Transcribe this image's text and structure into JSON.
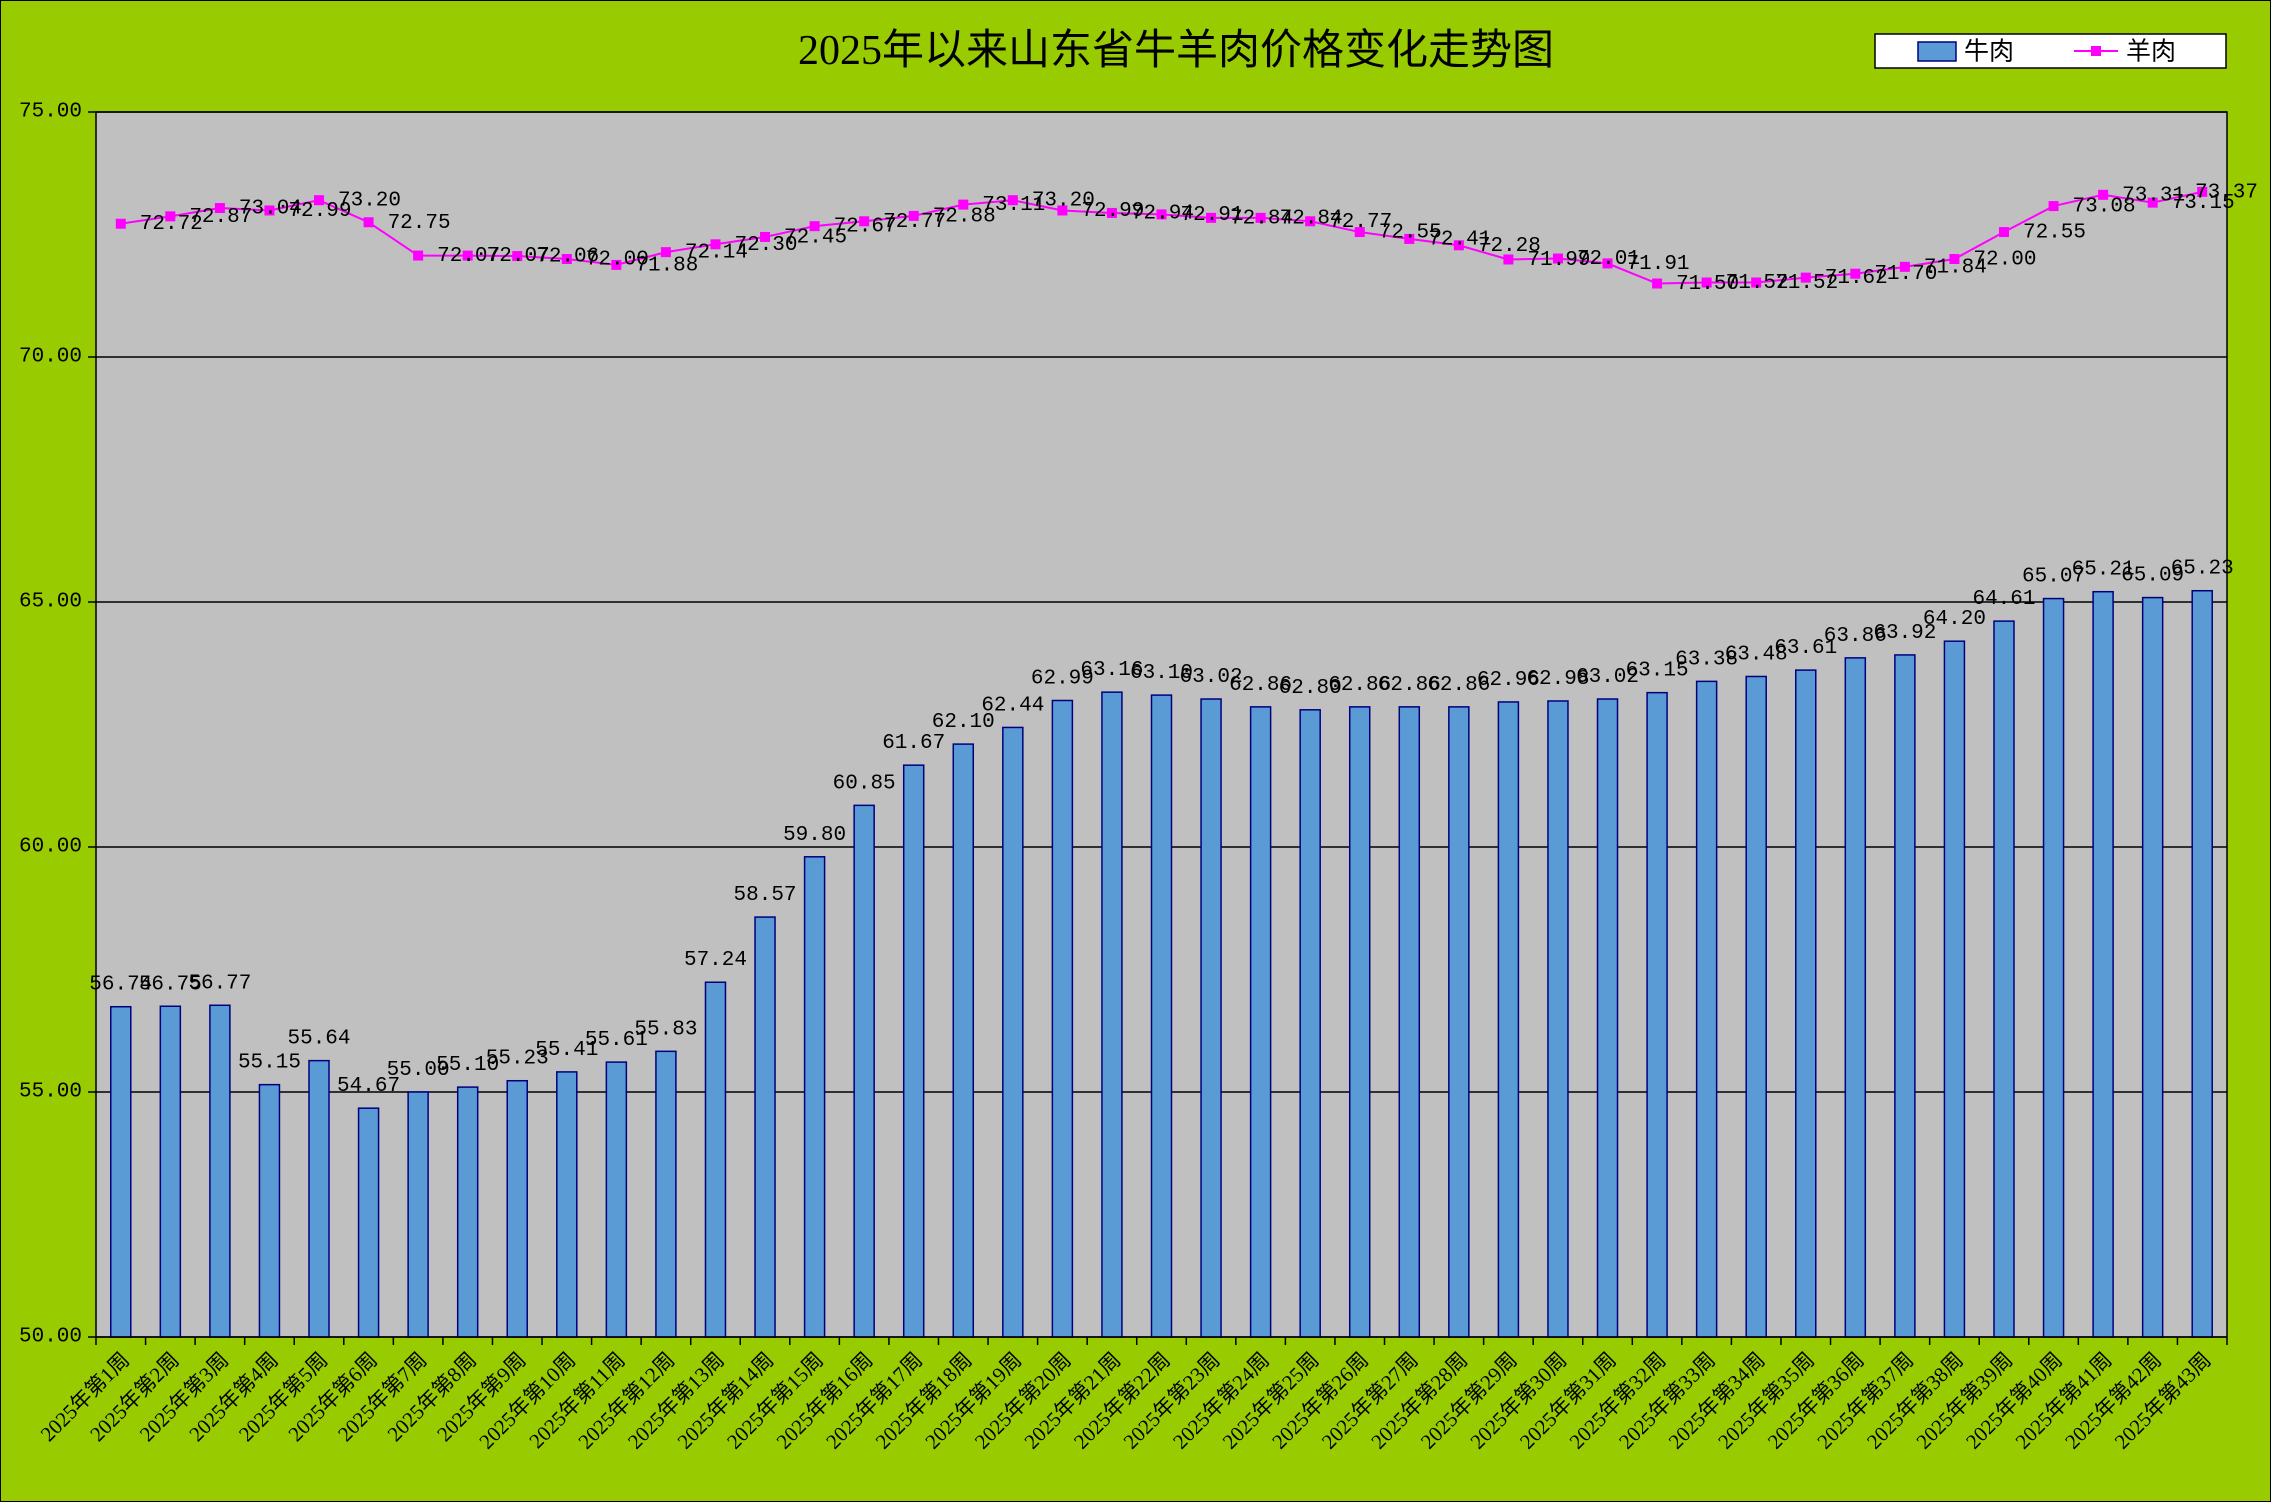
{
  "chart_data": {
    "type": "bar",
    "title": "2025年以来山东省牛羊肉价格变化走势图",
    "categories": [
      "2025年第1周",
      "2025年第2周",
      "2025年第3周",
      "2025年第4周",
      "2025年第5周",
      "2025年第6周",
      "2025年第7周",
      "2025年第8周",
      "2025年第9周",
      "2025年第10周",
      "2025年第11周",
      "2025年第12周",
      "2025年第13周",
      "2025年第14周",
      "2025年第15周",
      "2025年第16周",
      "2025年第17周",
      "2025年第18周",
      "2025年第19周",
      "2025年第20周",
      "2025年第21周",
      "2025年第22周",
      "2025年第23周",
      "2025年第24周",
      "2025年第25周",
      "2025年第26周",
      "2025年第27周",
      "2025年第28周",
      "2025年第29周",
      "2025年第30周",
      "2025年第31周",
      "2025年第32周",
      "2025年第33周",
      "2025年第34周",
      "2025年第35周",
      "2025年第36周",
      "2025年第37周",
      "2025年第38周",
      "2025年第39周",
      "2025年第40周",
      "2025年第41周",
      "2025年第42周",
      "2025年第43周"
    ],
    "series": [
      {
        "name": "牛肉",
        "type": "bar",
        "color": "#5B9BD5",
        "values": [
          56.74,
          56.75,
          56.77,
          55.15,
          55.64,
          54.67,
          55.0,
          55.1,
          55.23,
          55.41,
          55.61,
          55.83,
          57.24,
          58.57,
          59.8,
          60.85,
          61.67,
          62.1,
          62.44,
          62.99,
          63.16,
          63.1,
          63.02,
          62.86,
          62.8,
          62.86,
          62.86,
          62.86,
          62.96,
          62.98,
          63.02,
          63.15,
          63.38,
          63.48,
          63.61,
          63.86,
          63.92,
          64.2,
          64.61,
          65.07,
          65.21,
          65.09,
          65.23
        ]
      },
      {
        "name": "羊肉",
        "type": "line",
        "color": "#FF00FF",
        "values": [
          72.72,
          72.87,
          73.04,
          72.99,
          73.2,
          72.75,
          72.07,
          72.07,
          72.06,
          72.0,
          71.88,
          72.14,
          72.3,
          72.45,
          72.67,
          72.77,
          72.88,
          73.11,
          73.2,
          72.99,
          72.94,
          72.91,
          72.84,
          72.84,
          72.77,
          72.55,
          72.41,
          72.28,
          71.99,
          72.01,
          71.91,
          71.5,
          71.52,
          71.52,
          71.62,
          71.7,
          71.84,
          72.0,
          72.55,
          73.08,
          73.31,
          73.15,
          73.37
        ]
      }
    ],
    "ylim": [
      50,
      75
    ],
    "yticks": [
      "50.00",
      "55.00",
      "60.00",
      "65.00",
      "70.00",
      "75.00"
    ],
    "grid": true,
    "legend": "top-right"
  },
  "colors": {
    "background": "#99CC00",
    "plot_area": "#C0C0C0",
    "gridline": "#000000",
    "bar_border": "#00007F"
  }
}
